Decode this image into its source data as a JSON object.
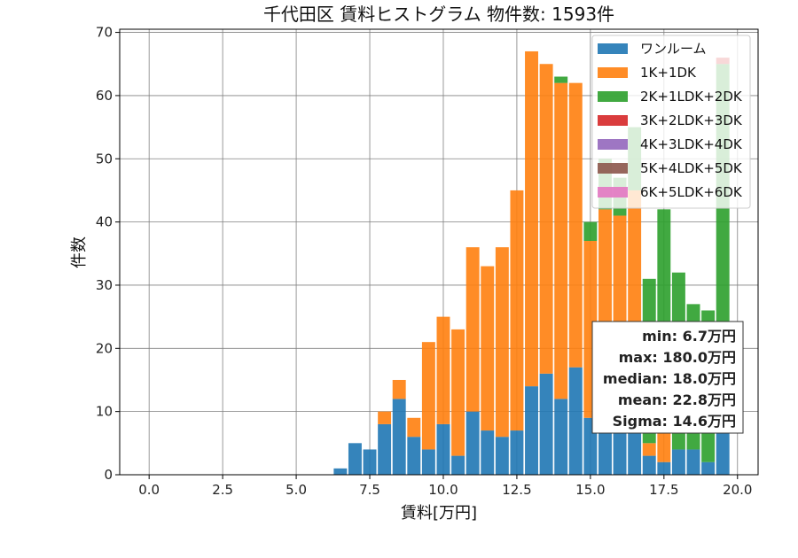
{
  "chart_data": {
    "type": "bar",
    "stacked": true,
    "title": "千代田区 賃料ヒストグラム  物件数: 1593件",
    "xlabel": "賃料[万円]",
    "ylabel": "件数",
    "xlim": [
      -1.0,
      20.7
    ],
    "ylim": [
      0,
      70.5
    ],
    "xticks": [
      0.0,
      2.5,
      5.0,
      7.5,
      10.0,
      12.5,
      15.0,
      17.5,
      20.0
    ],
    "xtick_labels": [
      "0.0",
      "2.5",
      "5.0",
      "7.5",
      "10.0",
      "12.5",
      "15.0",
      "17.5",
      "20.0"
    ],
    "yticks": [
      0,
      10,
      20,
      30,
      40,
      50,
      60,
      70
    ],
    "ytick_labels": [
      "0",
      "10",
      "20",
      "30",
      "40",
      "50",
      "60",
      "70"
    ],
    "grid": true,
    "bin_width": 0.5,
    "bar_width": 0.45,
    "x": [
      6.5,
      7.0,
      7.5,
      8.0,
      8.5,
      9.0,
      9.5,
      10.0,
      10.5,
      11.0,
      11.5,
      12.0,
      12.5,
      13.0,
      13.5,
      14.0,
      14.5,
      15.0,
      15.5,
      16.0,
      16.5,
      17.0,
      17.5,
      18.0,
      18.5,
      19.0,
      19.5
    ],
    "series": [
      {
        "name": "ワンルーム",
        "color": "#1f77b4",
        "values": [
          1,
          5,
          4,
          8,
          12,
          6,
          4,
          8,
          3,
          10,
          7,
          6,
          7,
          14,
          16,
          12,
          17,
          9,
          8,
          8,
          8,
          3,
          2,
          4,
          4,
          2,
          7
        ]
      },
      {
        "name": "1K+1DK",
        "color": "#ff7f0e",
        "values": [
          0,
          0,
          0,
          2,
          3,
          3,
          17,
          17,
          20,
          26,
          26,
          30,
          38,
          53,
          49,
          50,
          45,
          28,
          34,
          33,
          37,
          2,
          19,
          0,
          0,
          0,
          0
        ]
      },
      {
        "name": "2K+1LDK+2DK",
        "color": "#2ca02c",
        "values": [
          0,
          0,
          0,
          0,
          0,
          0,
          0,
          0,
          0,
          0,
          0,
          0,
          0,
          0,
          0,
          1,
          0,
          3,
          8,
          6,
          10,
          26,
          21,
          28,
          23,
          24,
          58
        ]
      },
      {
        "name": "3K+2LDK+3DK",
        "color": "#d62728",
        "values": [
          0,
          0,
          0,
          0,
          0,
          0,
          0,
          0,
          0,
          0,
          0,
          0,
          0,
          0,
          0,
          0,
          0,
          0,
          0,
          0,
          0,
          0,
          0,
          0,
          0,
          0,
          1
        ]
      },
      {
        "name": "4K+3LDK+4DK",
        "color": "#9467bd",
        "values": [
          0,
          0,
          0,
          0,
          0,
          0,
          0,
          0,
          0,
          0,
          0,
          0,
          0,
          0,
          0,
          0,
          0,
          0,
          0,
          0,
          0,
          0,
          0,
          0,
          0,
          0,
          0
        ]
      },
      {
        "name": "5K+4LDK+5DK",
        "color": "#8c564b",
        "values": [
          0,
          0,
          0,
          0,
          0,
          0,
          0,
          0,
          0,
          0,
          0,
          0,
          0,
          0,
          0,
          0,
          0,
          0,
          0,
          0,
          0,
          0,
          0,
          0,
          0,
          0,
          0
        ]
      },
      {
        "name": "6K+5LDK+6DK",
        "color": "#e377c2",
        "values": [
          0,
          0,
          0,
          0,
          0,
          0,
          0,
          0,
          0,
          0,
          0,
          0,
          0,
          0,
          0,
          0,
          0,
          0,
          0,
          0,
          0,
          0,
          0,
          0,
          0,
          0,
          0
        ]
      }
    ],
    "legend_position": "upper right",
    "stats_box": {
      "position": "lower right",
      "lines": [
        "min: 6.7万円",
        "max: 180.0万円",
        "median: 18.0万円",
        "mean: 22.8万円",
        "Sigma: 14.6万円"
      ]
    }
  }
}
